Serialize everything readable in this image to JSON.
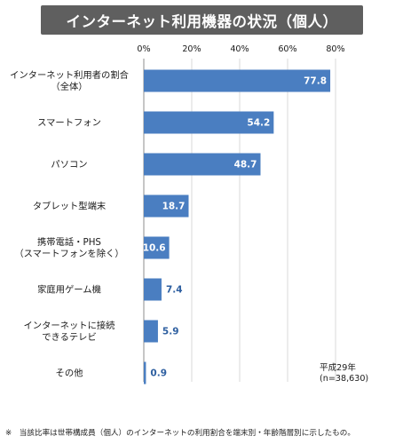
{
  "title": "インターネット利用機器の状況（個人）",
  "note": {
    "year": "平成29年",
    "n": "(n=38,630)"
  },
  "footnote": "※　当該比率は世帯構成員（個人）のインターネットの利用割合を端末別・年齢階層別に示したもの。",
  "colors": {
    "bar": "#4a7ec1",
    "banner": "#5f5f5f",
    "grid": "#d9d9d9"
  },
  "chart_data": {
    "type": "bar",
    "orientation": "horizontal",
    "unit": "%",
    "xlim": [
      0,
      80
    ],
    "xticks": [
      "0%",
      "20%",
      "40%",
      "60%",
      "80%"
    ],
    "tick_values": [
      0,
      20,
      40,
      60,
      80
    ],
    "grid": true,
    "categories": [
      [
        "インターネット利用者の割合",
        "（全体）"
      ],
      [
        "スマートフォン"
      ],
      [
        "パソコン"
      ],
      [
        "タブレット型端末"
      ],
      [
        "携帯電話・PHS",
        "（スマートフォンを除く）"
      ],
      [
        "家庭用ゲーム機"
      ],
      [
        "インターネットに接続",
        "できるテレビ"
      ],
      [
        "その他"
      ]
    ],
    "values": [
      77.8,
      54.2,
      48.7,
      18.7,
      10.6,
      7.4,
      5.9,
      0.9
    ],
    "data_labels": [
      "77.8",
      "54.2",
      "48.7",
      "18.7",
      "10.6",
      "7.4",
      "5.9",
      "0.9"
    ]
  }
}
